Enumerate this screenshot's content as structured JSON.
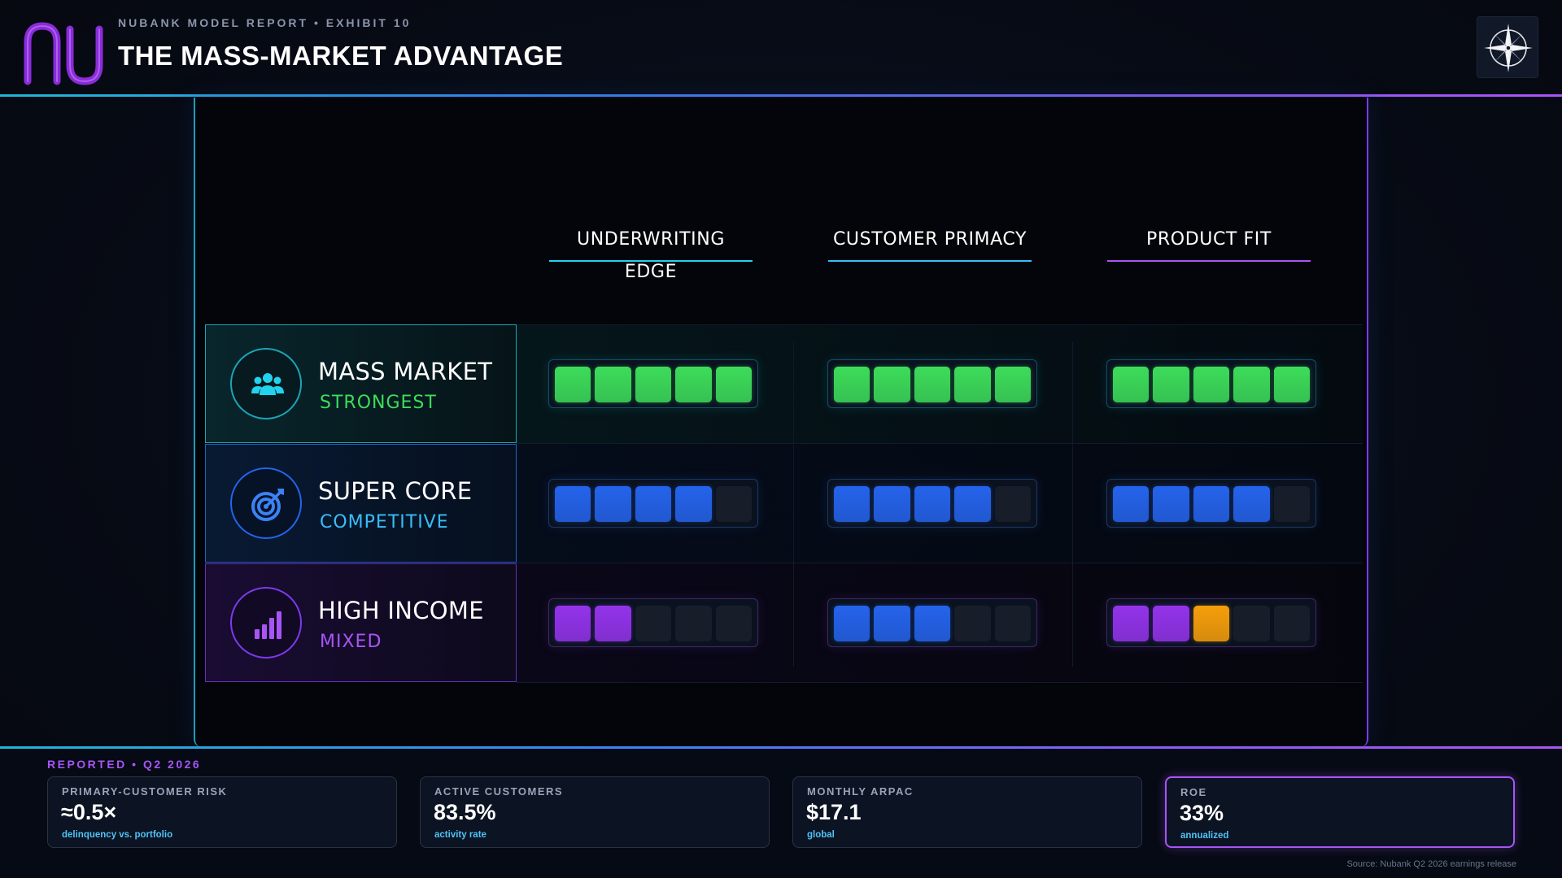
{
  "header": {
    "eyebrow": "NUBANK MODEL REPORT • EXHIBIT 10",
    "title": "THE MASS-MARKET ADVANTAGE",
    "logo_icon": "nu-logo",
    "corner_icon": "compass-rose-icon"
  },
  "matrix": {
    "columns": [
      {
        "label": "UNDERWRITING EDGE",
        "accent": "#22d3ee"
      },
      {
        "label": "CUSTOMER PRIMACY",
        "accent": "#38bdf8"
      },
      {
        "label": "PRODUCT FIT",
        "accent": "#a855f7"
      }
    ],
    "rows": [
      {
        "name": "MASS MARKET",
        "tier": "STRONGEST",
        "icon": "users-group-icon",
        "accent": "#22d3ee",
        "tier_color": "#3ddc5a",
        "scores": [
          {
            "filled": 5,
            "of": 5,
            "colors": [
              "#3ddc5a",
              "#3ddc5a",
              "#3ddc5a",
              "#3ddc5a",
              "#3ddc5a"
            ]
          },
          {
            "filled": 5,
            "of": 5,
            "colors": [
              "#3ddc5a",
              "#3ddc5a",
              "#3ddc5a",
              "#3ddc5a",
              "#3ddc5a"
            ]
          },
          {
            "filled": 5,
            "of": 5,
            "colors": [
              "#3ddc5a",
              "#3ddc5a",
              "#3ddc5a",
              "#3ddc5a",
              "#3ddc5a"
            ]
          }
        ]
      },
      {
        "name": "SUPER CORE",
        "tier": "COMPETITIVE",
        "icon": "target-icon",
        "accent": "#3b82f6",
        "tier_color": "#38bdf8",
        "scores": [
          {
            "filled": 4,
            "of": 5,
            "colors": [
              "#2563eb",
              "#2563eb",
              "#2563eb",
              "#2563eb"
            ]
          },
          {
            "filled": 4,
            "of": 5,
            "colors": [
              "#2563eb",
              "#2563eb",
              "#2563eb",
              "#2563eb"
            ]
          },
          {
            "filled": 4,
            "of": 5,
            "colors": [
              "#2563eb",
              "#2563eb",
              "#2563eb",
              "#2563eb"
            ]
          }
        ]
      },
      {
        "name": "HIGH INCOME",
        "tier": "MIXED",
        "icon": "bar-chart-icon",
        "accent": "#a855f7",
        "tier_color": "#a855f7",
        "scores": [
          {
            "filled": 2,
            "of": 5,
            "colors": [
              "#9333ea",
              "#9333ea"
            ]
          },
          {
            "filled": 3,
            "of": 5,
            "colors": [
              "#2563eb",
              "#2563eb",
              "#2563eb"
            ]
          },
          {
            "filled": 3,
            "of": 5,
            "colors": [
              "#9333ea",
              "#9333ea",
              "#f59e0b"
            ]
          }
        ]
      }
    ]
  },
  "footer": {
    "reported_label": "REPORTED • Q2 2026",
    "kpis": [
      {
        "label": "PRIMARY-CUSTOMER RISK",
        "value": "≈0.5×",
        "sub": "delinquency vs. portfolio",
        "highlight": false
      },
      {
        "label": "ACTIVE CUSTOMERS",
        "value": "83.5%",
        "sub": "activity rate",
        "highlight": false
      },
      {
        "label": "MONTHLY ARPAC",
        "value": "$17.1",
        "sub": "global",
        "highlight": false
      },
      {
        "label": "ROE",
        "value": "33%",
        "sub": "annualized",
        "highlight": true
      }
    ],
    "source": "Source: Nubank Q2 2026 earnings release"
  }
}
